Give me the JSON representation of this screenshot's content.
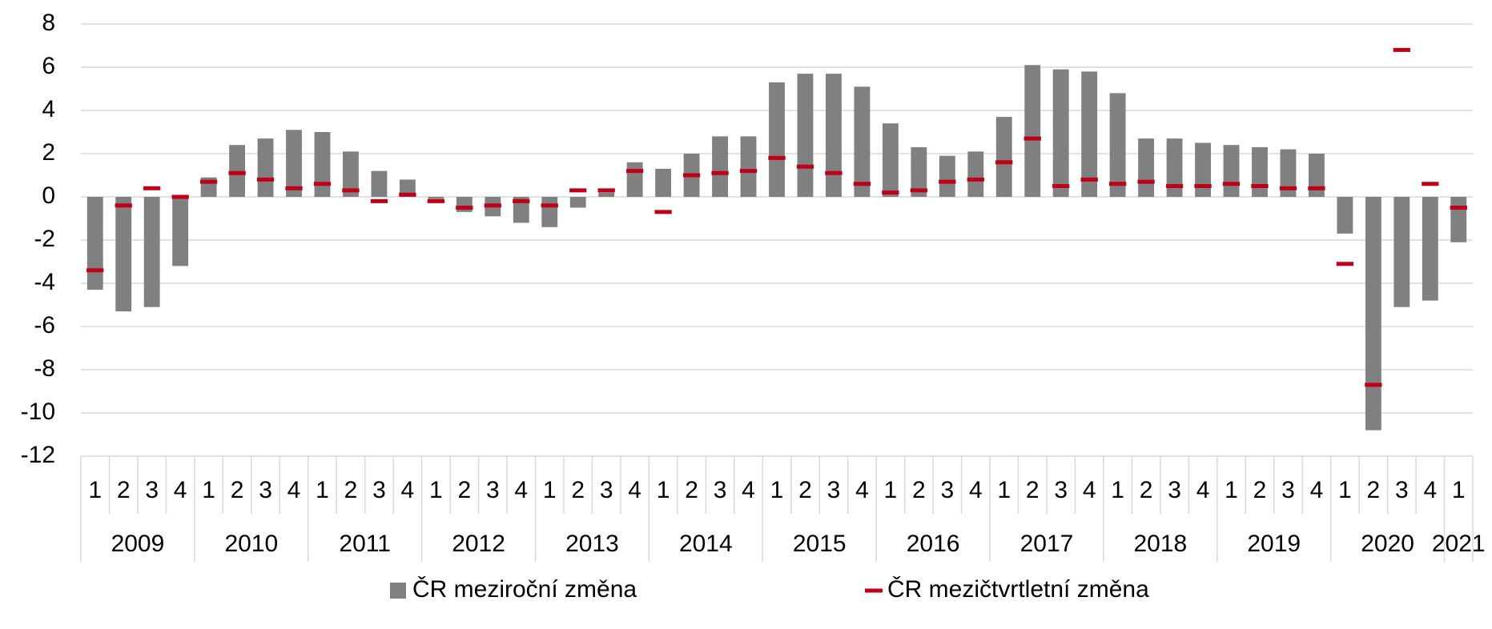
{
  "chart_data": {
    "type": "bar",
    "categories": [
      "1",
      "2",
      "3",
      "4",
      "1",
      "2",
      "3",
      "4",
      "1",
      "2",
      "3",
      "4",
      "1",
      "2",
      "3",
      "4",
      "1",
      "2",
      "3",
      "4",
      "1",
      "2",
      "3",
      "4",
      "1",
      "2",
      "3",
      "4",
      "1",
      "2",
      "3",
      "4",
      "1",
      "2",
      "3",
      "4",
      "1",
      "2",
      "3",
      "4",
      "1",
      "2",
      "3",
      "4",
      "1",
      "2",
      "3",
      "4",
      "1"
    ],
    "years": [
      "2009",
      "2010",
      "2011",
      "2012",
      "2013",
      "2014",
      "2015",
      "2016",
      "2017",
      "2018",
      "2019",
      "2020",
      "2021"
    ],
    "series": [
      {
        "name": "ČR meziroční změna",
        "color": "#808080",
        "style": "bar",
        "values": [
          -4.3,
          -5.3,
          -5.1,
          -3.2,
          0.9,
          2.4,
          2.7,
          3.1,
          3.0,
          2.1,
          1.2,
          0.8,
          -0.1,
          -0.7,
          -0.9,
          -1.2,
          -1.4,
          -0.5,
          0.2,
          1.6,
          1.3,
          2.0,
          2.8,
          2.8,
          5.3,
          5.7,
          5.7,
          5.1,
          3.4,
          2.3,
          1.9,
          2.1,
          3.7,
          6.1,
          5.9,
          5.8,
          4.8,
          2.7,
          2.7,
          2.5,
          2.4,
          2.3,
          2.2,
          2.0,
          -1.7,
          -10.8,
          -5.1,
          -4.8,
          -2.1
        ]
      },
      {
        "name": "ČR mezičtvrtletní změna",
        "color": "#c00018",
        "style": "dash",
        "values": [
          -3.4,
          -0.4,
          0.4,
          0.0,
          0.7,
          1.1,
          0.8,
          0.4,
          0.6,
          0.3,
          -0.2,
          0.1,
          -0.2,
          -0.5,
          -0.4,
          -0.2,
          -0.4,
          0.3,
          0.3,
          1.2,
          -0.7,
          1.0,
          1.1,
          1.2,
          1.8,
          1.4,
          1.1,
          0.6,
          0.2,
          0.3,
          0.7,
          0.8,
          1.6,
          2.7,
          0.5,
          0.8,
          0.6,
          0.7,
          0.5,
          0.5,
          0.6,
          0.5,
          0.4,
          0.4,
          -3.1,
          -8.7,
          6.8,
          0.6,
          -0.5
        ]
      }
    ],
    "ylim": [
      -12,
      8
    ],
    "yticks": [
      -12,
      -10,
      -8,
      -6,
      -4,
      -2,
      0,
      2,
      4,
      6,
      8
    ],
    "grid": true
  }
}
